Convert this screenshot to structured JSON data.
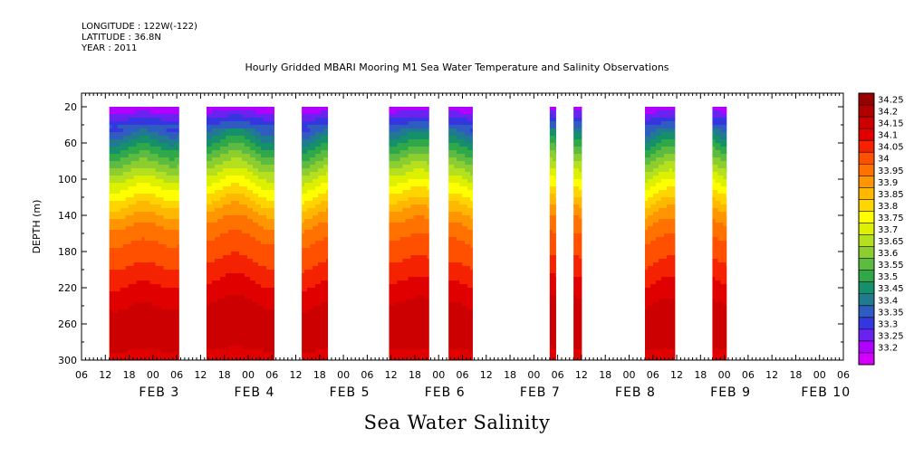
{
  "header": {
    "longitude": "LONGITUDE : 122W(-122)",
    "latitude": "LATITUDE : 36.8N",
    "year": "YEAR : 2011"
  },
  "title": "Hourly Gridded MBARI Mooring M1 Sea Water Temperature and Salinity Observations",
  "footer": "Sea Water Salinity",
  "chart_data": {
    "type": "heatmap",
    "title": "Hourly Gridded MBARI Mooring M1 Sea Water Temperature and Salinity Observations",
    "xlabel": "",
    "ylabel": "DEPTH (m)",
    "colorbar_label": "Sea Water Salinity",
    "ylim": [
      300,
      0
    ],
    "yticks": [
      20,
      60,
      100,
      140,
      180,
      220,
      260,
      300
    ],
    "xlim_hours": [
      0,
      192
    ],
    "hour_ticks": [
      "06",
      "12",
      "18",
      "00",
      "06",
      "12",
      "18",
      "00",
      "06",
      "12",
      "18",
      "00",
      "06",
      "12",
      "18",
      "00",
      "06",
      "12",
      "18",
      "00",
      "06",
      "12",
      "18",
      "00",
      "06",
      "12",
      "18",
      "00",
      "06",
      "12",
      "18",
      "00",
      "06"
    ],
    "day_labels": [
      {
        "text": "FEB 3",
        "hour": 18
      },
      {
        "text": "FEB 4",
        "hour": 42
      },
      {
        "text": "FEB 5",
        "hour": 66
      },
      {
        "text": "FEB 6",
        "hour": 90
      },
      {
        "text": "FEB 7",
        "hour": 114
      },
      {
        "text": "FEB 8",
        "hour": 138
      },
      {
        "text": "FEB 9",
        "hour": 162
      },
      {
        "text": "FEB 10",
        "hour": 186
      }
    ],
    "colorbar": {
      "levels": [
        "34.25",
        "34.2",
        "34.15",
        "34.1",
        "34.05",
        "34",
        "33.95",
        "33.9",
        "33.85",
        "33.8",
        "33.75",
        "33.7",
        "33.65",
        "33.6",
        "33.55",
        "33.5",
        "33.45",
        "33.4",
        "33.35",
        "33.3",
        "33.25",
        "33.2"
      ],
      "colors": [
        "#990000",
        "#b20000",
        "#cc0000",
        "#e00000",
        "#f42200",
        "#ff5000",
        "#ff7200",
        "#ff9500",
        "#ffb800",
        "#ffd500",
        "#ffff00",
        "#ddf000",
        "#b5e020",
        "#8cce30",
        "#5cbb40",
        "#2ea848",
        "#16906a",
        "#207a90",
        "#2e5cc0",
        "#3636e0",
        "#6a22f0",
        "#b000ff",
        "#d400ff"
      ]
    },
    "data_segments_hours": [
      [
        7,
        24.5
      ],
      [
        31.5,
        48.5
      ],
      [
        55.5,
        62
      ],
      [
        77.5,
        87.5
      ],
      [
        92.5,
        98.5
      ],
      [
        118,
        119.5
      ],
      [
        124,
        126
      ],
      [
        142,
        149.5
      ],
      [
        159,
        162.5
      ]
    ],
    "profile": [
      {
        "depth": 20,
        "salinity": 33.22
      },
      {
        "depth": 40,
        "salinity": 33.37
      },
      {
        "depth": 60,
        "salinity": 33.5
      },
      {
        "depth": 80,
        "salinity": 33.62
      },
      {
        "depth": 100,
        "salinity": 33.73
      },
      {
        "depth": 120,
        "salinity": 33.83
      },
      {
        "depth": 140,
        "salinity": 33.93
      },
      {
        "depth": 160,
        "salinity": 33.99
      },
      {
        "depth": 180,
        "salinity": 34.03
      },
      {
        "depth": 200,
        "salinity": 34.07
      },
      {
        "depth": 220,
        "salinity": 34.12
      },
      {
        "depth": 240,
        "salinity": 34.16
      },
      {
        "depth": 260,
        "salinity": 34.19
      },
      {
        "depth": 280,
        "salinity": 34.16
      },
      {
        "depth": 300,
        "salinity": 34.13
      }
    ]
  }
}
